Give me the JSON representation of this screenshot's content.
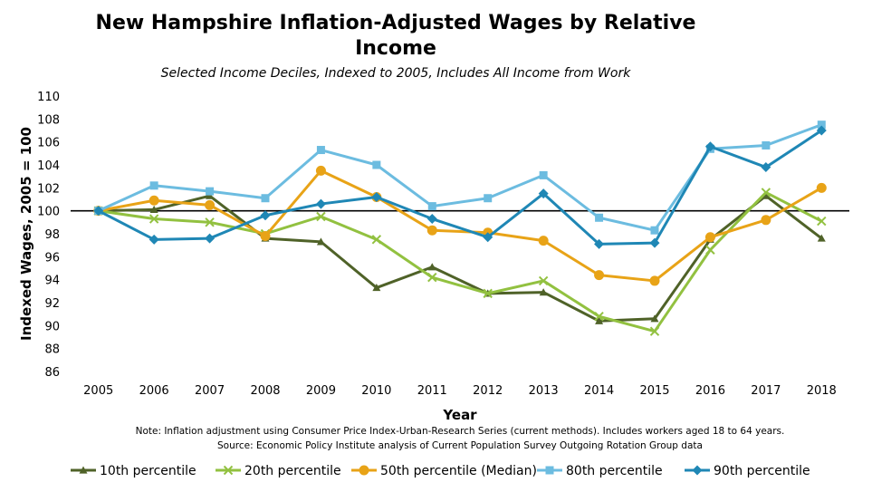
{
  "chart_data": {
    "type": "line",
    "title_line1": "New Hampshire Inflation-Adjusted Wages by Relative",
    "title_line2": "Income",
    "subtitle": "Selected Income Deciles, Indexed to 2005, Includes All Income from Work",
    "xlabel": "Year",
    "ylabel": "Indexed Wages, 2005 = 100",
    "categories": [
      "2005",
      "2006",
      "2007",
      "2008",
      "2009",
      "2010",
      "2011",
      "2012",
      "2013",
      "2014",
      "2015",
      "2016",
      "2017",
      "2018"
    ],
    "ylim": [
      86,
      110
    ],
    "yticks": [
      86,
      88,
      90,
      92,
      94,
      96,
      98,
      100,
      102,
      104,
      106,
      108,
      110
    ],
    "baseline": 100,
    "gridlines": false,
    "legend_position": "bottom",
    "series": [
      {
        "name": "10th percentile",
        "color": "#4f6228",
        "marker": "triangle",
        "values": [
          100.0,
          100.1,
          101.3,
          97.6,
          97.3,
          93.3,
          95.1,
          92.8,
          92.9,
          90.4,
          90.6,
          97.5,
          101.3,
          97.6
        ]
      },
      {
        "name": "20th percentile",
        "color": "#92c140",
        "marker": "x",
        "values": [
          100.0,
          99.3,
          99.0,
          98.0,
          99.5,
          97.5,
          94.2,
          92.8,
          93.9,
          90.8,
          89.5,
          96.6,
          101.6,
          99.1
        ]
      },
      {
        "name": "50th percentile (Median)",
        "color": "#e8a317",
        "marker": "circle",
        "values": [
          100.0,
          100.9,
          100.5,
          97.8,
          103.5,
          101.2,
          98.3,
          98.1,
          97.4,
          94.4,
          93.9,
          97.7,
          99.2,
          102.0
        ]
      },
      {
        "name": "80th percentile",
        "color": "#6cbce0",
        "marker": "square",
        "values": [
          100.0,
          102.2,
          101.7,
          101.1,
          105.3,
          104.0,
          100.4,
          101.1,
          103.1,
          99.4,
          98.3,
          105.4,
          105.7,
          107.5
        ]
      },
      {
        "name": "90th percentile",
        "color": "#1f87b5",
        "marker": "diamond",
        "values": [
          100.0,
          97.5,
          97.6,
          99.6,
          100.6,
          101.2,
          99.3,
          97.7,
          101.5,
          97.1,
          97.2,
          105.6,
          103.8,
          107.0
        ]
      }
    ],
    "note_line1": "Note: Inflation adjustment using Consumer Price Index-Urban-Research Series (current methods). Includes workers aged 18 to 64 years.",
    "note_line2": "Source: Economic Policy Institute analysis of Current Population Survey Outgoing Rotation Group data"
  }
}
